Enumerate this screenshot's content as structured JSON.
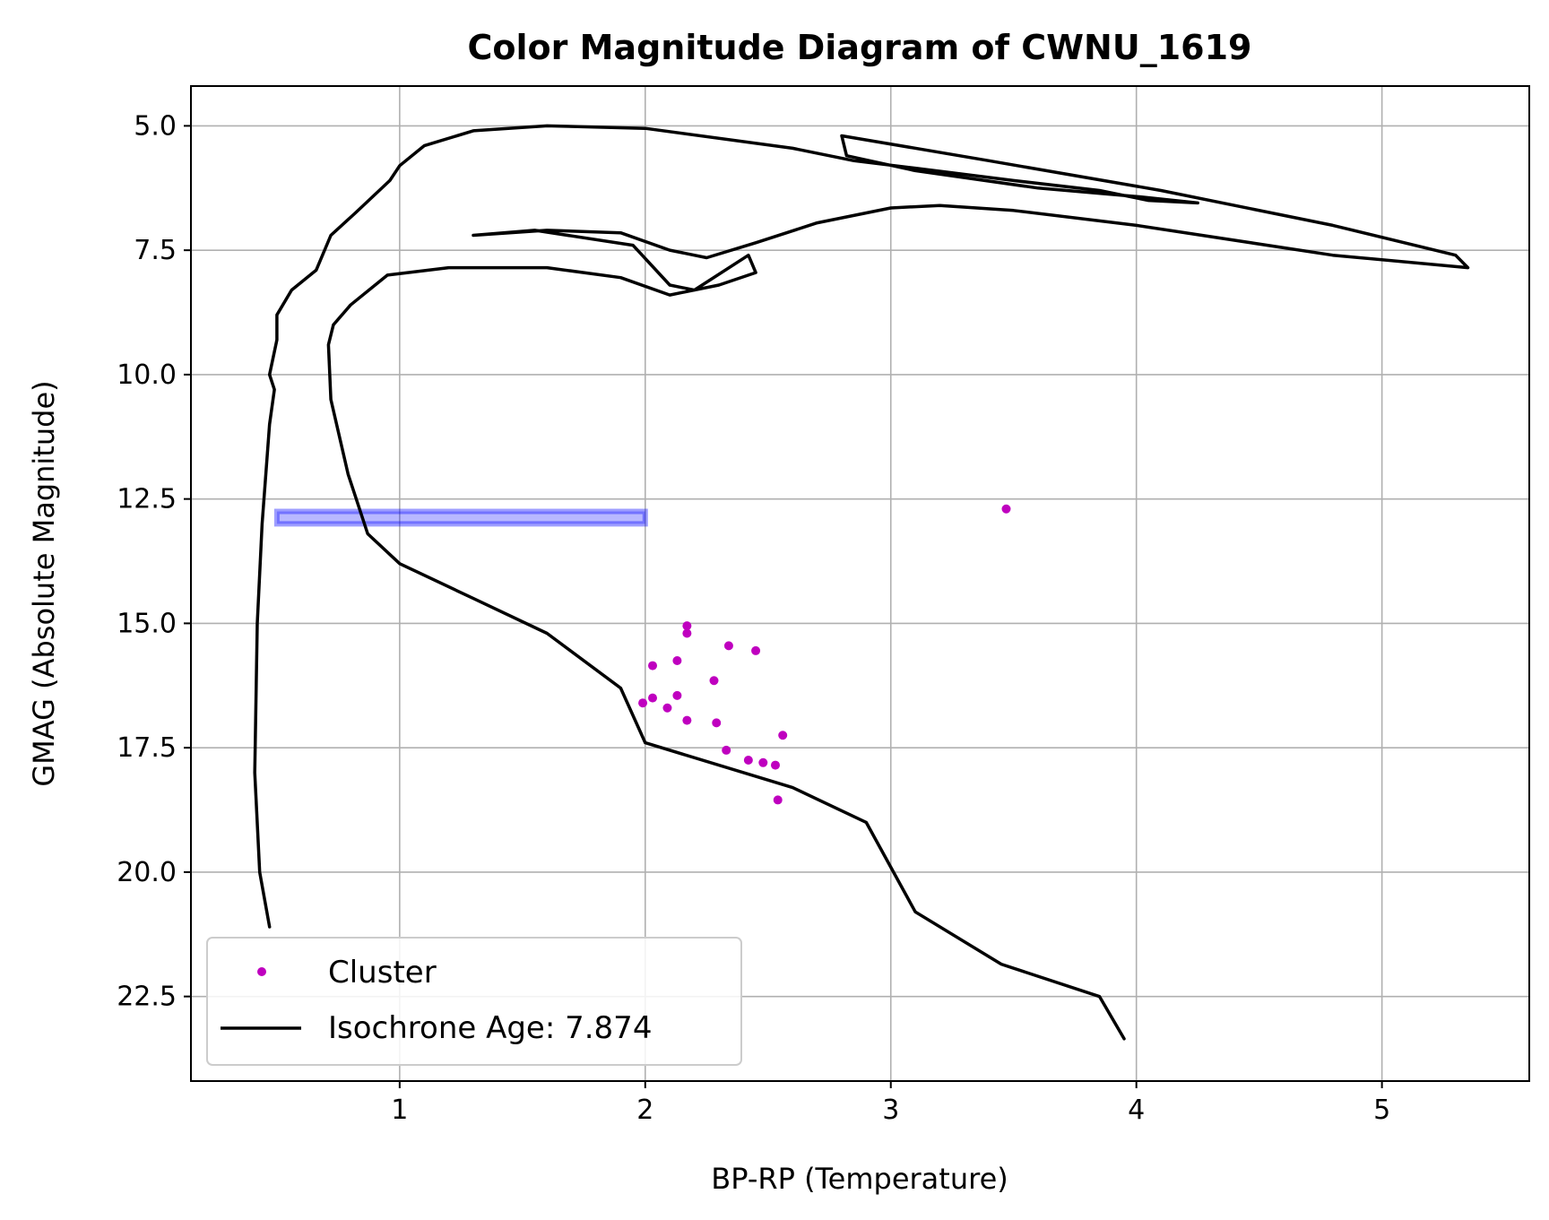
{
  "chart_data": {
    "type": "scatter",
    "title": "Color Magnitude Diagram of CWNU_1619",
    "xlabel": "BP-RP (Temperature)",
    "ylabel": "GMAG (Absolute Magnitude)",
    "xlim": [
      0.15,
      5.6
    ],
    "ylim": [
      24.2,
      4.2
    ],
    "y_inverted": true,
    "grid": true,
    "legend_position": "lower-left",
    "xticks": [
      1,
      2,
      3,
      4,
      5
    ],
    "xtick_labels": [
      "1",
      "2",
      "3",
      "4",
      "5"
    ],
    "yticks": [
      5.0,
      7.5,
      10.0,
      12.5,
      15.0,
      17.5,
      20.0,
      22.5
    ],
    "ytick_labels": [
      "5.0",
      "7.5",
      "10.0",
      "12.5",
      "15.0",
      "17.5",
      "20.0",
      "22.5"
    ],
    "series": [
      {
        "name": "Cluster",
        "kind": "scatter",
        "color": "#bf00bf",
        "points": [
          [
            3.47,
            12.7
          ],
          [
            2.17,
            15.05
          ],
          [
            2.17,
            15.2
          ],
          [
            2.34,
            15.45
          ],
          [
            2.45,
            15.55
          ],
          [
            2.03,
            15.85
          ],
          [
            2.13,
            15.75
          ],
          [
            2.28,
            16.15
          ],
          [
            2.13,
            16.45
          ],
          [
            2.03,
            16.5
          ],
          [
            1.99,
            16.6
          ],
          [
            2.09,
            16.7
          ],
          [
            2.17,
            16.95
          ],
          [
            2.29,
            17.0
          ],
          [
            2.56,
            17.25
          ],
          [
            2.33,
            17.55
          ],
          [
            2.42,
            17.75
          ],
          [
            2.48,
            17.8
          ],
          [
            2.53,
            17.85
          ],
          [
            2.54,
            18.55
          ]
        ]
      },
      {
        "name": "Isochrone Age: 7.874",
        "kind": "line",
        "color": "#000000",
        "points": [
          [
            0.47,
            21.1
          ],
          [
            0.43,
            20.0
          ],
          [
            0.41,
            18.0
          ],
          [
            0.42,
            15.0
          ],
          [
            0.44,
            13.0
          ],
          [
            0.47,
            11.0
          ],
          [
            0.49,
            10.3
          ],
          [
            0.47,
            10.0
          ],
          [
            0.5,
            9.3
          ],
          [
            0.5,
            8.8
          ],
          [
            0.56,
            8.3
          ],
          [
            0.66,
            7.9
          ],
          [
            0.72,
            7.2
          ],
          [
            0.82,
            6.75
          ],
          [
            0.96,
            6.1
          ],
          [
            1.0,
            5.8
          ],
          [
            1.1,
            5.4
          ],
          [
            1.3,
            5.1
          ],
          [
            1.6,
            5.0
          ],
          [
            2.0,
            5.05
          ],
          [
            2.6,
            5.45
          ],
          [
            2.85,
            5.7
          ],
          [
            3.1,
            5.85
          ],
          [
            3.5,
            6.1
          ],
          [
            3.85,
            6.3
          ],
          [
            4.05,
            6.5
          ],
          [
            4.25,
            6.55
          ],
          [
            4.0,
            6.42
          ],
          [
            3.6,
            6.25
          ],
          [
            3.1,
            5.9
          ],
          [
            2.82,
            5.6
          ],
          [
            2.8,
            5.2
          ],
          [
            3.4,
            5.7
          ],
          [
            4.1,
            6.3
          ],
          [
            4.8,
            7.0
          ],
          [
            5.3,
            7.6
          ],
          [
            5.35,
            7.85
          ],
          [
            4.8,
            7.6
          ],
          [
            4.0,
            7.0
          ],
          [
            3.5,
            6.7
          ],
          [
            3.2,
            6.6
          ],
          [
            3.0,
            6.65
          ],
          [
            2.7,
            6.95
          ],
          [
            2.45,
            7.35
          ],
          [
            2.25,
            7.65
          ],
          [
            2.1,
            7.5
          ],
          [
            1.9,
            7.15
          ],
          [
            1.6,
            7.1
          ],
          [
            1.3,
            7.2
          ],
          [
            1.55,
            7.1
          ],
          [
            1.95,
            7.4
          ],
          [
            2.1,
            8.2
          ],
          [
            2.2,
            8.3
          ],
          [
            2.42,
            7.6
          ],
          [
            2.45,
            7.95
          ],
          [
            2.3,
            8.2
          ],
          [
            2.1,
            8.4
          ],
          [
            1.9,
            8.05
          ],
          [
            1.6,
            7.85
          ],
          [
            1.2,
            7.85
          ],
          [
            0.95,
            8.0
          ],
          [
            0.8,
            8.6
          ],
          [
            0.73,
            9.0
          ],
          [
            0.71,
            9.4
          ],
          [
            0.72,
            10.5
          ],
          [
            0.79,
            12.0
          ],
          [
            0.87,
            13.2
          ],
          [
            1.0,
            13.8
          ],
          [
            1.3,
            14.5
          ],
          [
            1.6,
            15.2
          ],
          [
            1.9,
            16.3
          ],
          [
            2.0,
            17.4
          ],
          [
            2.6,
            18.3
          ],
          [
            2.9,
            19.0
          ],
          [
            3.1,
            20.8
          ],
          [
            3.45,
            21.85
          ],
          [
            3.85,
            22.5
          ],
          [
            3.95,
            23.35
          ]
        ]
      }
    ],
    "annotations": [
      {
        "kind": "highlight-rectangle",
        "color": "#0000ff",
        "x_range": [
          0.5,
          2.0
        ],
        "y_range": [
          12.75,
          13.0
        ]
      }
    ]
  }
}
